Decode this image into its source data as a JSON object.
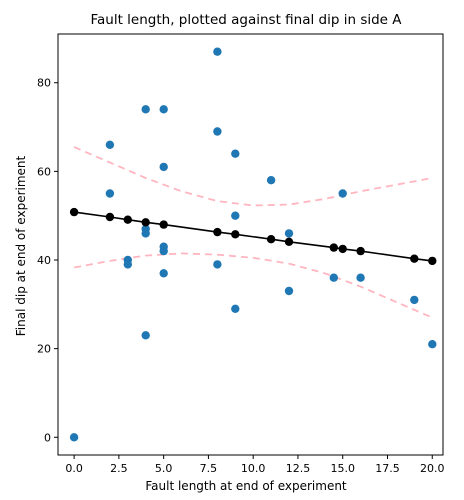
{
  "chart_data": {
    "type": "scatter",
    "title": "Fault length, plotted against final dip in side A",
    "xlabel": "Fault length at end of experiment",
    "ylabel": "Final dip at end of experiment",
    "xlim": [
      -0.9,
      20.6
    ],
    "ylim": [
      -4,
      91
    ],
    "xticks": [
      0.0,
      2.5,
      5.0,
      7.5,
      10.0,
      12.5,
      15.0,
      17.5,
      20.0
    ],
    "xtick_labels": [
      "0.0",
      "2.5",
      "5.0",
      "7.5",
      "10.0",
      "12.5",
      "15.0",
      "17.5",
      "20.0"
    ],
    "yticks": [
      0,
      20,
      40,
      60,
      80
    ],
    "ytick_labels": [
      "0",
      "20",
      "40",
      "60",
      "80"
    ],
    "grid": false,
    "legend": "none",
    "colors": {
      "points": "#1f77b4",
      "fit": "#000000",
      "band": "#ffb6c1"
    },
    "observations": [
      {
        "x": 0,
        "y": 0
      },
      {
        "x": 2,
        "y": 66
      },
      {
        "x": 2,
        "y": 55
      },
      {
        "x": 3,
        "y": 40
      },
      {
        "x": 3,
        "y": 39
      },
      {
        "x": 4,
        "y": 74
      },
      {
        "x": 4,
        "y": 47
      },
      {
        "x": 4,
        "y": 46
      },
      {
        "x": 4,
        "y": 23
      },
      {
        "x": 5,
        "y": 74
      },
      {
        "x": 5,
        "y": 61
      },
      {
        "x": 5,
        "y": 43
      },
      {
        "x": 5,
        "y": 42
      },
      {
        "x": 5,
        "y": 37
      },
      {
        "x": 8,
        "y": 87
      },
      {
        "x": 8,
        "y": 69
      },
      {
        "x": 8,
        "y": 39
      },
      {
        "x": 9,
        "y": 64
      },
      {
        "x": 9,
        "y": 50
      },
      {
        "x": 9,
        "y": 29
      },
      {
        "x": 11,
        "y": 58
      },
      {
        "x": 12,
        "y": 46
      },
      {
        "x": 12,
        "y": 33
      },
      {
        "x": 14.5,
        "y": 36
      },
      {
        "x": 15,
        "y": 55
      },
      {
        "x": 16,
        "y": 36
      },
      {
        "x": 19,
        "y": 31
      },
      {
        "x": 20,
        "y": 21
      }
    ],
    "fit": {
      "x": [
        0,
        2,
        3,
        4,
        5,
        8,
        9,
        11,
        12,
        14.5,
        15,
        16,
        19,
        20
      ],
      "y": [
        50.8,
        49.7,
        49.1,
        48.5,
        48.0,
        46.3,
        45.8,
        44.7,
        44.1,
        42.8,
        42.5,
        42.0,
        40.3,
        39.8
      ]
    },
    "band_upper": {
      "x": [
        0,
        2,
        4,
        6,
        8,
        10,
        12,
        14,
        16,
        18,
        20
      ],
      "y": [
        65.5,
        62.0,
        58.5,
        55.5,
        53.3,
        52.3,
        52.5,
        53.8,
        55.5,
        57.0,
        58.5
      ]
    },
    "band_lower": {
      "x": [
        0,
        2,
        4,
        6,
        8,
        10,
        12,
        14,
        16,
        18,
        20
      ],
      "y": [
        38.3,
        39.8,
        41.0,
        41.5,
        41.2,
        40.5,
        39.2,
        37.0,
        34.0,
        30.5,
        27.0
      ]
    }
  }
}
